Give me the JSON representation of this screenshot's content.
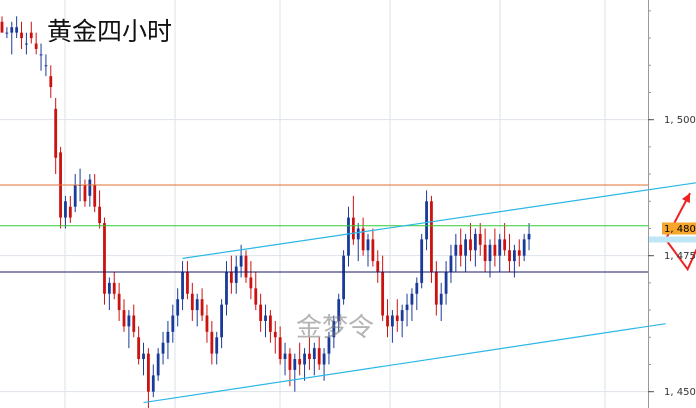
{
  "chart_data": {
    "type": "candlestick",
    "title": "黄金四小时",
    "watermark": "金梦令",
    "ylim": [
      1447,
      1522
    ],
    "y_ticks": [
      {
        "value": 1500,
        "label": "1, 500"
      },
      {
        "value": 1475,
        "label": "1, 475"
      },
      {
        "value": 1450,
        "label": "1, 450"
      }
    ],
    "current_price": {
      "value": 1480,
      "label": "1, 480."
    },
    "horizontal_levels": [
      {
        "value": 1488.0,
        "color": "#e07030"
      },
      {
        "value": 1480.5,
        "color": "#33cc33"
      },
      {
        "value": 1472.0,
        "color": "#1a1a66"
      }
    ],
    "channel": {
      "color": "#2ab7e6",
      "upper": [
        [
          37,
          1474.5
        ],
        [
          143,
          1488.5
        ]
      ],
      "lower": [
        [
          29,
          1448.0
        ],
        [
          136,
          1462.5
        ]
      ]
    },
    "forecast_arrows": {
      "color": "#ee2222",
      "paths": [
        [
          [
            136,
            1478
          ],
          [
            141,
            1486.5
          ]
        ],
        [
          [
            136,
            1478
          ],
          [
            140.5,
            1472.5
          ],
          [
            144,
            1479.5
          ]
        ]
      ]
    },
    "colors": {
      "up": "#1a3a9a",
      "down": "#cc1111",
      "grid": "#dde3ea",
      "axis": "#999999"
    },
    "candles": [
      [
        1518,
        1519,
        1516,
        1516
      ],
      [
        1516,
        1517,
        1515,
        1516
      ],
      [
        1516,
        1518,
        1512,
        1517
      ],
      [
        1516,
        1519,
        1515,
        1517
      ],
      [
        1516,
        1518,
        1513,
        1515
      ],
      [
        1514,
        1516,
        1512,
        1514
      ],
      [
        1516,
        1518,
        1514,
        1515
      ],
      [
        1514,
        1516,
        1512,
        1513
      ],
      [
        1512,
        1514,
        1509,
        1512
      ],
      [
        1510,
        1512,
        1508,
        1510
      ],
      [
        1508,
        1510,
        1504,
        1506
      ],
      [
        1502,
        1504,
        1490,
        1493
      ],
      [
        1494,
        1495,
        1480,
        1482
      ],
      [
        1482,
        1486,
        1480,
        1485
      ],
      [
        1484,
        1486,
        1481,
        1482
      ],
      [
        1484,
        1490,
        1483,
        1488
      ],
      [
        1488,
        1491,
        1485,
        1488
      ],
      [
        1488,
        1489,
        1484,
        1485
      ],
      [
        1486,
        1490,
        1484,
        1489
      ],
      [
        1488,
        1490,
        1483,
        1484
      ],
      [
        1484,
        1487,
        1480,
        1481
      ],
      [
        1481,
        1482,
        1466,
        1468
      ],
      [
        1468,
        1471,
        1465,
        1470
      ],
      [
        1470,
        1472,
        1467,
        1468
      ],
      [
        1468,
        1470,
        1463,
        1465
      ],
      [
        1465,
        1467,
        1461,
        1462
      ],
      [
        1462,
        1465,
        1458,
        1464
      ],
      [
        1464,
        1466,
        1460,
        1461
      ],
      [
        1460,
        1462,
        1455,
        1456
      ],
      [
        1456,
        1459,
        1453,
        1457
      ],
      [
        1457,
        1458,
        1447,
        1450
      ],
      [
        1450,
        1455,
        1449,
        1453
      ],
      [
        1453,
        1458,
        1452,
        1457
      ],
      [
        1457,
        1461,
        1455,
        1459
      ],
      [
        1459,
        1463,
        1456,
        1461
      ],
      [
        1461,
        1466,
        1459,
        1464
      ],
      [
        1464,
        1469,
        1462,
        1467
      ],
      [
        1467,
        1474,
        1465,
        1472
      ],
      [
        1472,
        1474,
        1467,
        1468
      ],
      [
        1468,
        1470,
        1463,
        1465
      ],
      [
        1465,
        1468,
        1462,
        1467
      ],
      [
        1467,
        1469,
        1463,
        1464
      ],
      [
        1464,
        1466,
        1459,
        1461
      ],
      [
        1461,
        1463,
        1455,
        1457
      ],
      [
        1457,
        1461,
        1455,
        1460
      ],
      [
        1460,
        1467,
        1458,
        1466
      ],
      [
        1466,
        1474,
        1464,
        1472
      ],
      [
        1472,
        1475,
        1468,
        1470
      ],
      [
        1470,
        1475,
        1468,
        1473
      ],
      [
        1473,
        1477,
        1471,
        1475
      ],
      [
        1475,
        1476,
        1470,
        1471
      ],
      [
        1471,
        1474,
        1467,
        1469
      ],
      [
        1469,
        1472,
        1465,
        1466
      ],
      [
        1466,
        1468,
        1461,
        1463
      ],
      [
        1463,
        1466,
        1460,
        1464
      ],
      [
        1464,
        1465,
        1459,
        1461
      ],
      [
        1461,
        1463,
        1457,
        1460
      ],
      [
        1460,
        1462,
        1455,
        1456
      ],
      [
        1456,
        1459,
        1453,
        1457
      ],
      [
        1457,
        1458,
        1451,
        1454
      ],
      [
        1454,
        1457,
        1450,
        1456
      ],
      [
        1456,
        1459,
        1453,
        1455
      ],
      [
        1455,
        1458,
        1452,
        1457
      ],
      [
        1457,
        1460,
        1454,
        1456
      ],
      [
        1456,
        1459,
        1453,
        1458
      ],
      [
        1458,
        1460,
        1454,
        1455
      ],
      [
        1455,
        1458,
        1452,
        1457
      ],
      [
        1457,
        1461,
        1455,
        1460
      ],
      [
        1460,
        1464,
        1458,
        1463
      ],
      [
        1463,
        1468,
        1461,
        1467
      ],
      [
        1467,
        1476,
        1466,
        1475
      ],
      [
        1475,
        1484,
        1473,
        1482
      ],
      [
        1482,
        1486,
        1477,
        1478
      ],
      [
        1478,
        1481,
        1474,
        1480
      ],
      [
        1480,
        1482,
        1475,
        1476
      ],
      [
        1476,
        1479,
        1473,
        1478
      ],
      [
        1478,
        1480,
        1473,
        1474
      ],
      [
        1474,
        1476,
        1470,
        1472
      ],
      [
        1472,
        1475,
        1463,
        1464
      ],
      [
        1464,
        1467,
        1460,
        1462
      ],
      [
        1462,
        1465,
        1459,
        1464
      ],
      [
        1464,
        1467,
        1461,
        1463
      ],
      [
        1463,
        1466,
        1460,
        1465
      ],
      [
        1465,
        1468,
        1462,
        1466
      ],
      [
        1466,
        1469,
        1463,
        1468
      ],
      [
        1468,
        1471,
        1465,
        1470
      ],
      [
        1470,
        1479,
        1469,
        1478
      ],
      [
        1478,
        1487,
        1476,
        1485
      ],
      [
        1485,
        1486,
        1470,
        1472
      ],
      [
        1472,
        1474,
        1464,
        1466
      ],
      [
        1466,
        1470,
        1463,
        1468
      ],
      [
        1468,
        1474,
        1466,
        1472
      ],
      [
        1472,
        1477,
        1470,
        1475
      ],
      [
        1475,
        1479,
        1472,
        1477
      ],
      [
        1477,
        1480,
        1473,
        1475
      ],
      [
        1475,
        1479,
        1472,
        1478
      ],
      [
        1478,
        1481,
        1474,
        1476
      ],
      [
        1476,
        1480,
        1473,
        1479
      ],
      [
        1479,
        1481,
        1475,
        1477
      ],
      [
        1477,
        1480,
        1472,
        1474
      ],
      [
        1474,
        1478,
        1471,
        1477
      ],
      [
        1477,
        1480,
        1473,
        1475
      ],
      [
        1475,
        1479,
        1472,
        1478
      ],
      [
        1478,
        1481,
        1475,
        1476
      ],
      [
        1476,
        1479,
        1472,
        1474
      ],
      [
        1474,
        1477,
        1471,
        1476
      ],
      [
        1476,
        1478,
        1473,
        1475
      ],
      [
        1475,
        1479,
        1474,
        1478
      ],
      [
        1478,
        1481,
        1476,
        1479
      ]
    ]
  }
}
